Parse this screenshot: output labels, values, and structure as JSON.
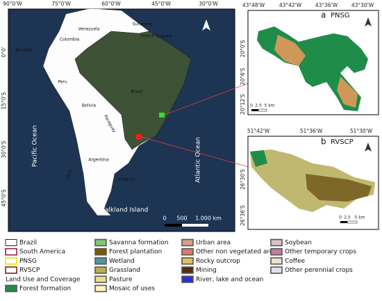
{
  "main_map": {
    "lon_labels": [
      "90°0'W",
      "75°0'W",
      "60°0'W",
      "45°0'W",
      "30°0'W"
    ],
    "lat_labels": [
      "0°0'",
      "15°0'S",
      "30°0'S",
      "45°0'S"
    ],
    "places": [
      "Venezuela",
      "Suriname",
      "French Guyana",
      "Colombia",
      "Ecuador",
      "Peru",
      "Brazil",
      "Bolivia",
      "Paraguay",
      "Chile",
      "Argentina",
      "Uruguay",
      "Falkland Island",
      "Pacific Ocean",
      "Atlantic Ocean"
    ],
    "scale_labels": [
      "0",
      "500",
      "1.000 km"
    ]
  },
  "panel_a": {
    "letter": "a",
    "name": "PNSG",
    "lon_labels": [
      "43°48'W",
      "43°42'W",
      "43°36'W",
      "43°30'W"
    ],
    "lat_labels": [
      "20°0'S",
      "20°6'S",
      "20°12'S"
    ],
    "scale_labels": [
      "0",
      "2.5",
      "5 km"
    ]
  },
  "panel_b": {
    "letter": "b",
    "name": "RVSCP",
    "lon_labels": [
      "51°42'W",
      "51°36'W",
      "51°30'W"
    ],
    "lat_labels": [
      "26°30'S",
      "26°36'S"
    ],
    "scale_labels": [
      "0",
      "2.5",
      "5 km"
    ]
  },
  "legend": {
    "boundaries": [
      {
        "label": "Brazil",
        "fill": "#ffffff",
        "border": "#222222"
      },
      {
        "label": "South America",
        "fill": "#ffffff",
        "border": "#9b1d52"
      },
      {
        "label": "PNSG",
        "fill": "#ffffff",
        "border": "#e6e600"
      },
      {
        "label": "RVSCP",
        "fill": "#ffffff",
        "border": "#8b1a1a"
      }
    ],
    "heading": "Land Use and Coverage",
    "classes": [
      {
        "label": "Forest formation",
        "color": "#1f8d49"
      },
      {
        "label": "Savanna formation",
        "color": "#7dc975"
      },
      {
        "label": "Forest plantation",
        "color": "#7a5900"
      },
      {
        "label": "Wetland",
        "color": "#519799"
      },
      {
        "label": "Grassland",
        "color": "#b8af4f"
      },
      {
        "label": "Pasture",
        "color": "#edde8e"
      },
      {
        "label": "Mosaic of uses",
        "color": "#fff3bf"
      },
      {
        "label": "Urban area",
        "color": "#d4a08a"
      },
      {
        "label": "Other non vegetated areas",
        "color": "#db7a6a"
      },
      {
        "label": "Rocky outcrop",
        "color": "#ddc060"
      },
      {
        "label": "Mining",
        "color": "#5a2a10"
      },
      {
        "label": "River, lake and ocean",
        "color": "#2532e4"
      },
      {
        "label": "Soybean",
        "color": "#d9c1c8"
      },
      {
        "label": "Other temporary crops",
        "color": "#c27ba0"
      },
      {
        "label": "Coffee",
        "color": "#f0e0c8"
      },
      {
        "label": "Other perennial crops",
        "color": "#e6dff0"
      }
    ]
  }
}
